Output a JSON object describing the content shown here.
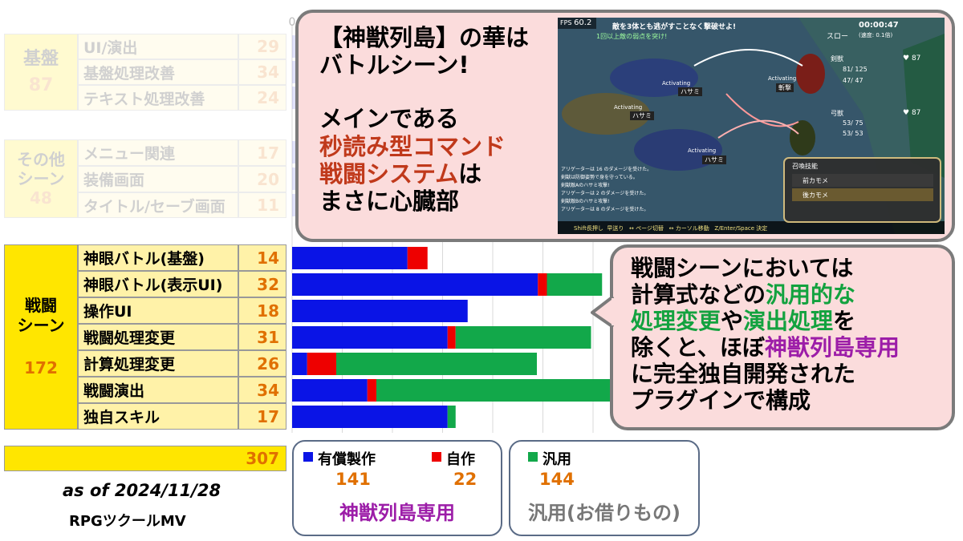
{
  "colors": {
    "paid": "#0a14e6",
    "self": "#ee0000",
    "generic": "#12a84a",
    "accent_orange": "#e07000",
    "category_yellow": "#ffe600"
  },
  "background_table": {
    "groups": [
      {
        "category": "基盤",
        "total": "87",
        "rows": [
          {
            "name": "UI/演出",
            "value": "29"
          },
          {
            "name": "基盤処理改善",
            "value": "34"
          },
          {
            "name": "テキスト処理改善",
            "value": "24"
          }
        ]
      },
      {
        "category_lines": [
          "その他",
          "シーン"
        ],
        "total": "48",
        "rows": [
          {
            "name": "メニュー関連",
            "value": "17"
          },
          {
            "name": "装備画面",
            "value": "20"
          },
          {
            "name": "タイトル/セーブ画面",
            "value": "11"
          }
        ]
      }
    ]
  },
  "battle_table": {
    "category_lines": [
      "戦闘",
      "シーン"
    ],
    "total": "172",
    "rows": [
      {
        "name": "神眼バトル(基盤)",
        "value": "14"
      },
      {
        "name": "神眼バトル(表示UI)",
        "value": "32"
      },
      {
        "name": "操作UI",
        "value": "18"
      },
      {
        "name": "戦闘処理変更",
        "value": "31"
      },
      {
        "name": "計算処理変更",
        "value": "26"
      },
      {
        "name": "戦闘演出",
        "value": "34"
      },
      {
        "name": "独自スキル",
        "value": "17"
      }
    ],
    "grand_total": "307"
  },
  "chart_data": {
    "type": "bar",
    "orientation": "horizontal",
    "stacked": true,
    "categories": [
      "神眼バトル(基盤)",
      "神眼バトル(表示UI)",
      "操作UI",
      "戦闘処理変更",
      "計算処理変更",
      "戦闘演出",
      "独自スキル"
    ],
    "series": [
      {
        "name": "有償製作",
        "values": [
          11.5,
          24.5,
          17.5,
          15.5,
          1.5,
          7.5,
          15.5
        ]
      },
      {
        "name": "自作",
        "values": [
          2,
          0.9,
          0,
          0.8,
          2.9,
          0.9,
          0
        ]
      },
      {
        "name": "汎用",
        "values": [
          0,
          5.5,
          0,
          13.5,
          20,
          23.5,
          0.8
        ]
      }
    ],
    "faded_background_bars": [
      29,
      34,
      24,
      17,
      20,
      11
    ],
    "xaxis_ticks": [
      "0",
      "5",
      "10",
      "15",
      "20",
      "25",
      "30"
    ],
    "xlim": [
      0,
      31
    ]
  },
  "legend": {
    "left_box": {
      "items": [
        {
          "label": "有償製作",
          "value": "141"
        },
        {
          "label": "自作",
          "value": "22"
        }
      ],
      "caption": "神獣列島専用"
    },
    "right_box": {
      "items": [
        {
          "label": "汎用",
          "value": "144"
        }
      ],
      "caption": "汎用(お借りもの)"
    }
  },
  "footer": {
    "date": "as of 2024/11/28",
    "engine": "RPGツクールMV"
  },
  "callout_top": {
    "line1": "【神獣列島】の華は",
    "line2": "バトルシーン!",
    "line3": "メインである",
    "line4": "秒読み型コマンド",
    "line5_emph": "戦闘システム",
    "line5_rest": "は",
    "line6": "まさに心臓部"
  },
  "callout_bottom": {
    "line1": "戦闘シーンにおいては",
    "line2_pre": "計算式などの",
    "line2_emph": "汎用的な",
    "line3_emph1": "処理変更",
    "line3_mid": "や",
    "line3_emph2": "演出処理",
    "line3_post": "を",
    "line4_pre": "除くと、ほぼ",
    "line4_emph": "神獣列島専用",
    "line5": "に完全独自開発された",
    "line6": "プラグインで構成"
  },
  "game_screenshot": {
    "fps_label": "FPS",
    "fps_value": "60.2",
    "mission": "敵を3体とも逃がすことなく撃破せよ!",
    "sub_mission": "1回以上敵の弱点を突け!",
    "timer": "00:00:47",
    "timer_sub": "(速度: 0.1倍)",
    "speed_label": "スロー",
    "activating": "Activating",
    "skill_hasami": "ハサミ",
    "skill_zanzan": "斬撃",
    "hero1_name": "剣獣",
    "hero1_hp": "81/ 125",
    "hero1_mp": "47/ 47",
    "hero1_heart": "87",
    "hero2_name": "弓獣",
    "hero2_hp": "53/ 75",
    "hero2_mp": "53/ 53",
    "hero2_heart": "87",
    "menu_title": "召喚技能",
    "menu_item1": "前カモメ",
    "menu_item2": "後カモメ",
    "log_lines": [
      "アリゲーターは 16 のダメージを受けた。",
      "剣獣は防御姿勢で身を守っている。",
      "剣獣敵Aのハサミ攻撃!",
      "アリゲーターは 2 のダメージを受けた。",
      "剣獣敵Bのハサミ攻撃!",
      "アリゲーターは 8 のダメージを受けた。"
    ],
    "controls": "Shift長押し  早送り   ↔ ページ切替   ↔ カーソル移動   Z/Enter/Space 決定"
  }
}
